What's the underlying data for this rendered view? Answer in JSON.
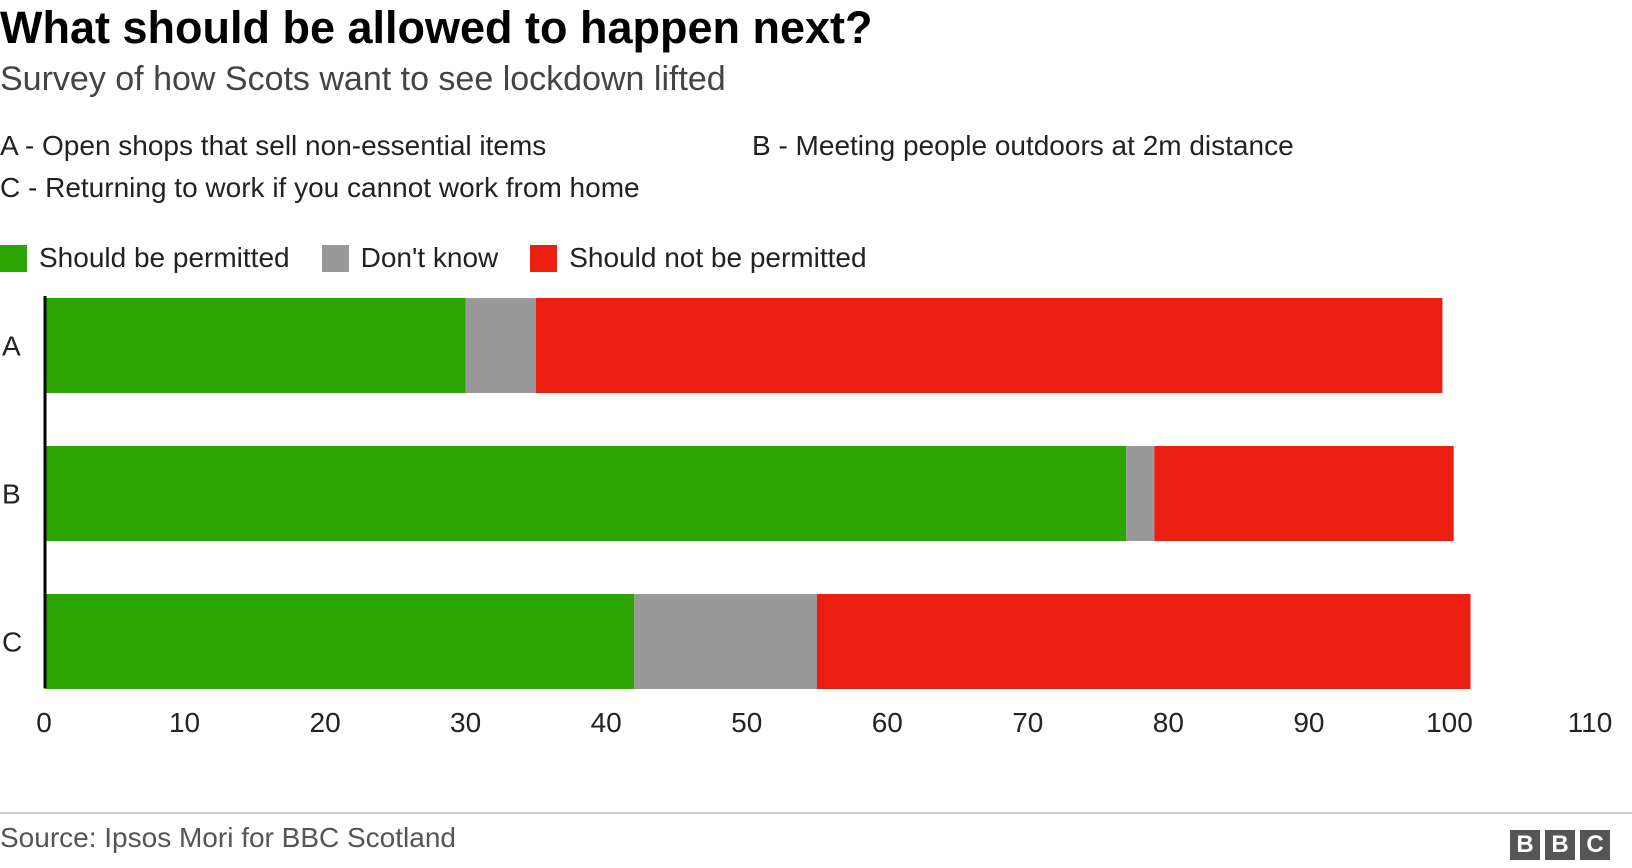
{
  "header": {
    "title": "What should be allowed to happen next?",
    "subtitle": "Survey of how Scots want to see lockdown lifted"
  },
  "key": {
    "a": "A - Open shops that sell non-essential items",
    "b": "B - Meeting people outdoors at 2m distance",
    "c": "C - Returning to work if you cannot work from home"
  },
  "colors": {
    "permitted": "#2ca503",
    "dont_know": "#999999",
    "not_permitted": "#eb1e12",
    "axis": "#000000"
  },
  "chart_data": {
    "type": "bar",
    "orientation": "horizontal",
    "stacked": true,
    "title": "What should be allowed to happen next?",
    "subtitle": "Survey of how Scots want to see lockdown lifted",
    "categories": [
      "A",
      "B",
      "C"
    ],
    "series": [
      {
        "name": "Should be permitted",
        "values": [
          30,
          77,
          42
        ]
      },
      {
        "name": "Don't know",
        "values": [
          5,
          2,
          13
        ]
      },
      {
        "name": "Should not be permitted",
        "values": [
          64.5,
          21.3,
          46.5
        ]
      }
    ],
    "xlim": [
      0,
      110
    ],
    "xticks": [
      "0",
      "10",
      "20",
      "30",
      "40",
      "50",
      "60",
      "70",
      "80",
      "90",
      "100",
      "110"
    ],
    "grid": false,
    "legend_position": "top-left",
    "xlabel": "",
    "ylabel": ""
  },
  "footer": {
    "source": "Source: Ipsos Mori for BBC Scotland",
    "logo_letters": [
      "B",
      "B",
      "C"
    ]
  }
}
